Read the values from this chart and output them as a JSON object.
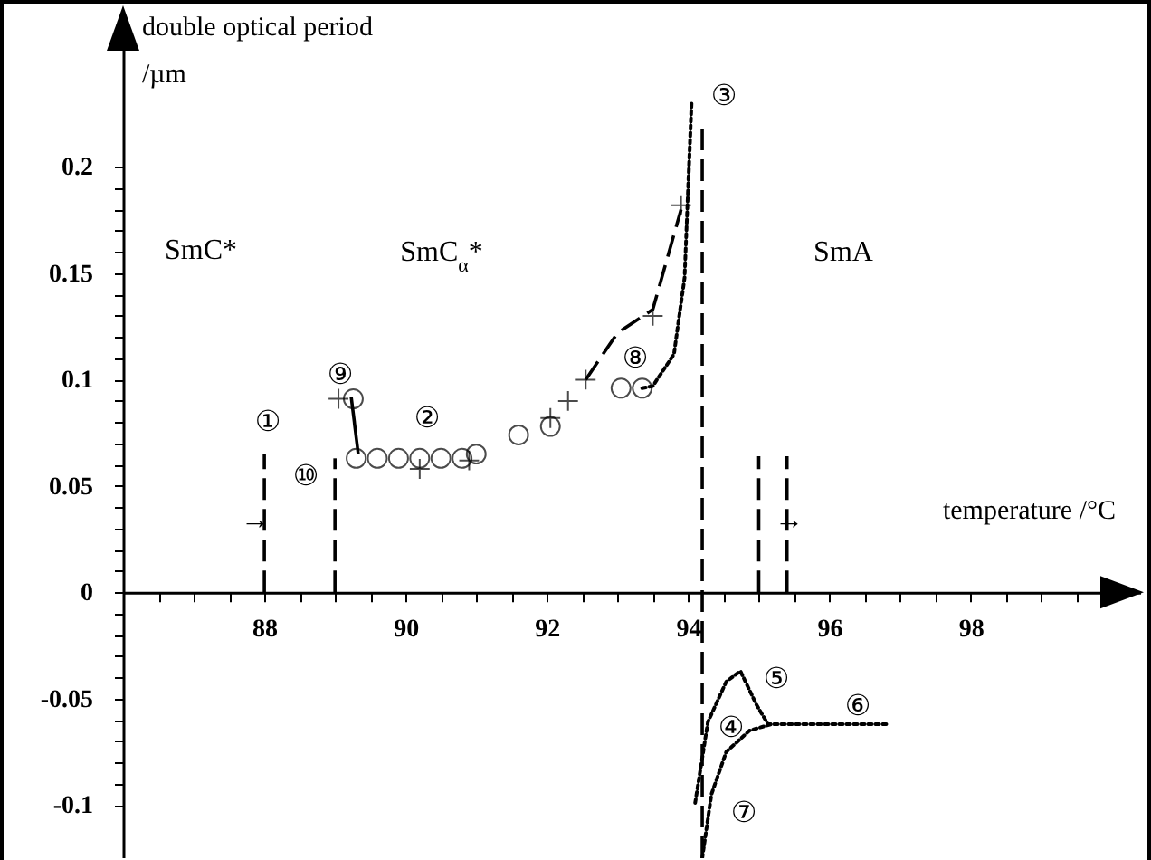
{
  "chart_data": {
    "type": "scatter",
    "xlabel": "temperature /°C",
    "ylabel": "double optical period\n/µm",
    "xlim": [
      86,
      100.4
    ],
    "ylim": [
      -0.125,
      0.27
    ],
    "xticks": [
      {
        "value": 86.5,
        "label": null
      },
      {
        "value": 87,
        "label": null
      },
      {
        "value": 87.5,
        "label": null
      },
      88,
      {
        "value": 88.5,
        "label": null
      },
      {
        "value": 89,
        "label": null
      },
      {
        "value": 89.5,
        "label": null
      },
      90,
      {
        "value": 90.5,
        "label": null
      },
      {
        "value": 91,
        "label": null
      },
      {
        "value": 91.5,
        "label": null
      },
      92,
      {
        "value": 92.5,
        "label": null
      },
      {
        "value": 93,
        "label": null
      },
      {
        "value": 93.5,
        "label": null
      },
      94,
      {
        "value": 94.5,
        "label": null
      },
      {
        "value": 95,
        "label": null
      },
      {
        "value": 95.5,
        "label": null
      },
      96,
      {
        "value": 96.5,
        "label": null
      },
      {
        "value": 97,
        "label": null
      },
      {
        "value": 97.5,
        "label": null
      },
      98,
      {
        "value": 98.5,
        "label": null
      },
      {
        "value": 99,
        "label": null
      },
      {
        "value": 99.5,
        "label": null
      }
    ],
    "yticks": [
      -0.1,
      {
        "value": -0.09,
        "label": null
      },
      {
        "value": -0.08,
        "label": null
      },
      {
        "value": -0.07,
        "label": null
      },
      {
        "value": -0.06,
        "label": null
      },
      -0.05,
      {
        "value": -0.04,
        "label": null
      },
      {
        "value": -0.03,
        "label": null
      },
      {
        "value": -0.02,
        "label": null
      },
      {
        "value": -0.01,
        "label": null
      },
      0,
      {
        "value": 0.01,
        "label": null
      },
      {
        "value": 0.02,
        "label": null
      },
      {
        "value": 0.03,
        "label": null
      },
      {
        "value": 0.04,
        "label": null
      },
      0.05,
      {
        "value": 0.06,
        "label": null
      },
      {
        "value": 0.07,
        "label": null
      },
      {
        "value": 0.08,
        "label": null
      },
      {
        "value": 0.09,
        "label": null
      },
      0.1,
      {
        "value": 0.11,
        "label": null
      },
      {
        "value": 0.12,
        "label": null
      },
      {
        "value": 0.13,
        "label": null
      },
      {
        "value": 0.14,
        "label": null
      },
      0.15,
      {
        "value": 0.16,
        "label": null
      },
      {
        "value": 0.17,
        "label": null
      },
      {
        "value": 0.18,
        "label": null
      },
      {
        "value": 0.19,
        "label": null
      },
      0.2
    ],
    "grid": false,
    "series": [
      {
        "marker": "circle",
        "color": "#000000",
        "x": [
          89.26,
          89.3,
          89.6,
          89.9,
          90.2,
          90.5,
          90.8,
          91.0,
          91.6,
          92.05,
          93.05,
          93.35
        ],
        "values": [
          0.091,
          0.063,
          0.063,
          0.063,
          0.063,
          0.063,
          0.063,
          0.065,
          0.074,
          0.078,
          0.096,
          0.096
        ]
      },
      {
        "marker": "cross",
        "color": "#000000",
        "x": [
          89.05,
          90.2,
          90.9,
          92.05,
          92.3,
          92.55,
          93.5,
          93.9
        ],
        "values": [
          0.091,
          0.058,
          0.062,
          0.082,
          0.09,
          0.1,
          0.13,
          0.182
        ]
      },
      {
        "type": "line",
        "line_style": "solid",
        "marker": "none",
        "color": "#000000",
        "x": [
          89.23,
          89.33
        ],
        "values": [
          0.092,
          0.065
        ]
      },
      {
        "type": "line",
        "line_style": "dashed",
        "marker": "none",
        "color": "#000000",
        "x": [
          92.55,
          93.0,
          93.5,
          93.9
        ],
        "values": [
          0.1,
          0.122,
          0.133,
          0.18
        ]
      },
      {
        "type": "line",
        "line_style": "dotted",
        "marker": "none",
        "color": "#000000",
        "x": [
          93.35,
          93.5,
          93.8,
          93.95,
          94.0,
          94.05
        ],
        "values": [
          0.096,
          0.097,
          0.112,
          0.148,
          0.19,
          0.231
        ]
      },
      {
        "type": "line",
        "line_style": "dotted",
        "marker": "none",
        "color": "#000000",
        "x": [
          94.1,
          94.28,
          94.54,
          94.74,
          94.97,
          95.13,
          96.85
        ],
        "values": [
          -0.099,
          -0.061,
          -0.042,
          -0.037,
          -0.053,
          -0.062,
          -0.062
        ]
      },
      {
        "type": "line",
        "line_style": "dotted",
        "marker": "none",
        "color": "#000000",
        "x": [
          94.2,
          94.33,
          94.54,
          94.87,
          95.18
        ],
        "values": [
          -0.125,
          -0.095,
          -0.075,
          -0.065,
          -0.062
        ]
      },
      {
        "type": "line",
        "line_style": "dashed",
        "marker": "none",
        "color": "#000000",
        "x": [
          88,
          88
        ],
        "values": [
          0,
          0.065
        ]
      },
      {
        "type": "line",
        "line_style": "dashed",
        "marker": "none",
        "color": "#000000",
        "x": [
          89,
          89
        ],
        "values": [
          0,
          0.063
        ]
      },
      {
        "type": "line",
        "line_style": "dashed",
        "marker": "none",
        "color": "#000000",
        "x": [
          94.2,
          94.2
        ],
        "values": [
          -0.125,
          0.22
        ]
      },
      {
        "type": "line",
        "line_style": "dashed",
        "marker": "none",
        "color": "#000000",
        "x": [
          95,
          95
        ],
        "values": [
          0,
          0.064
        ]
      },
      {
        "type": "line",
        "line_style": "dashed",
        "marker": "none",
        "color": "#000000",
        "x": [
          95.4,
          95.4
        ],
        "values": [
          0,
          0.064
        ]
      }
    ],
    "annotations": [
      "SmC*",
      "SmC$_{α}$*",
      "SmA",
      "①",
      "②",
      "③",
      "④",
      "⑤",
      "⑥",
      "⑦",
      "⑧",
      "⑨",
      "⑩",
      "→",
      "→"
    ]
  }
}
